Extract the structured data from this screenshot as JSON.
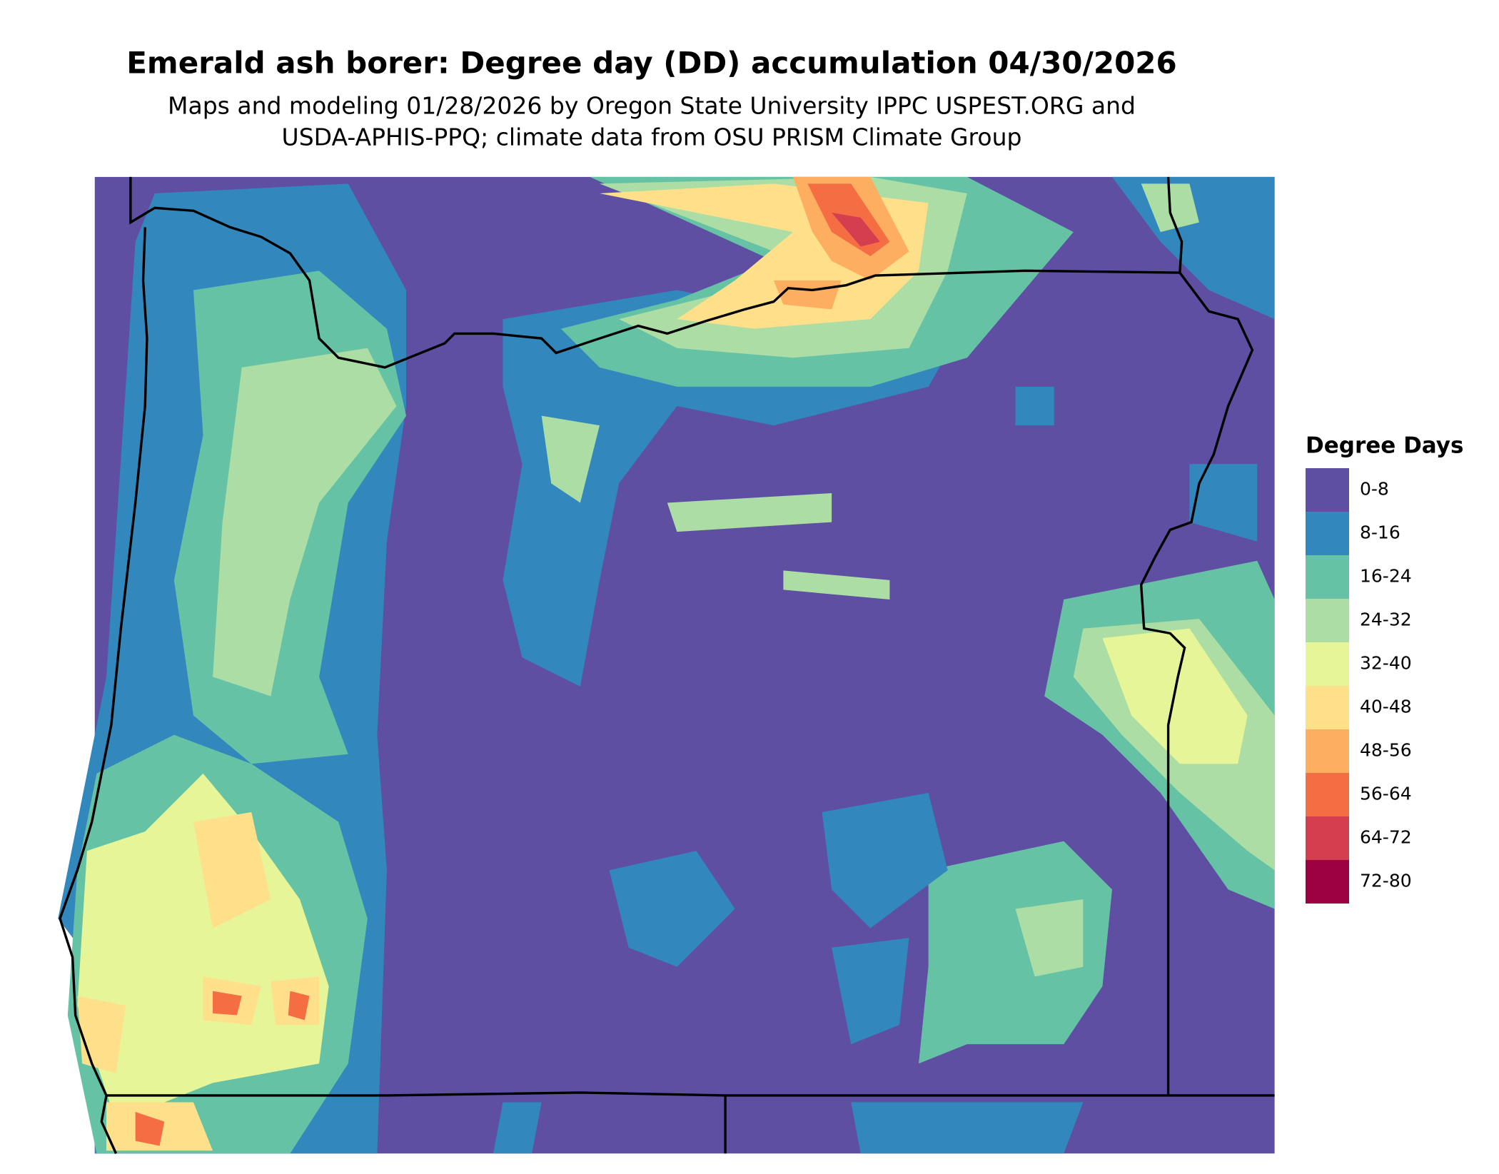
{
  "title": "Emerald ash borer: Degree day (DD) accumulation 04/30/2026",
  "subtitle_lines": [
    "Maps and modeling 01/28/2026 by Oregon State University IPPC USPEST.ORG and",
    "USDA-APHIS-PPQ; climate data from OSU PRISM Climate Group"
  ],
  "legend": {
    "title": "Degree Days",
    "items": [
      {
        "label": "0-8",
        "color": "#5e4fa2"
      },
      {
        "label": "8-16",
        "color": "#3288bd"
      },
      {
        "label": "16-24",
        "color": "#66c2a5"
      },
      {
        "label": "24-32",
        "color": "#abdda4"
      },
      {
        "label": "32-40",
        "color": "#e6f598"
      },
      {
        "label": "40-48",
        "color": "#fee08b"
      },
      {
        "label": "48-56",
        "color": "#fdae61"
      },
      {
        "label": "56-64",
        "color": "#f46d43"
      },
      {
        "label": "64-72",
        "color": "#d53e4f"
      },
      {
        "label": "72-80",
        "color": "#9e0142"
      }
    ]
  }
}
